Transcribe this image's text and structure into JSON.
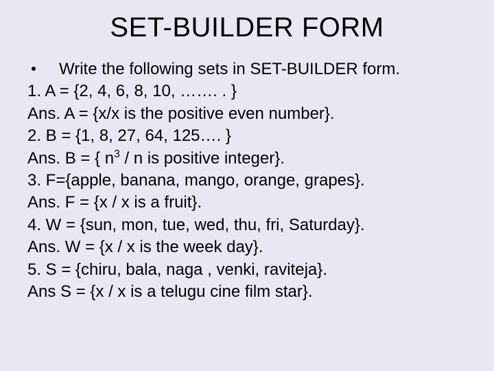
{
  "background_color": "#e8e8f5",
  "text_color": "#000000",
  "font_family": "Arial, Helvetica, sans-serif",
  "title": {
    "text": "SET-BUILDER FORM",
    "fontsize": 40,
    "weight": "normal",
    "align": "center"
  },
  "body_fontsize": 24,
  "lines": {
    "l0": "Write the following sets in SET-BUILDER form.",
    "l1": "1.   A = {2, 4, 6, 8, 10, ……. . }",
    "l2": "Ans. A = {x/x is the positive even number}.",
    "l3": "2.   B = {1, 8, 27, 64, 125…. }",
    "l4a": "Ans. B = { n",
    "l4b": " / n is positive integer}.",
    "l4sup": "3",
    "l5": "3. F={apple, banana, mango, orange, grapes}.",
    "l6": "Ans. F = {x / x is a fruit}.",
    "l7": "4.   W = {sun, mon, tue, wed, thu, fri, Saturday}.",
    "l8": "Ans. W = {x / x is the week day}.",
    "l9": "5.   S = {chiru, bala, naga , venki, raviteja}.",
    "l10": "Ans  S = {x / x is a telugu cine film star}."
  }
}
